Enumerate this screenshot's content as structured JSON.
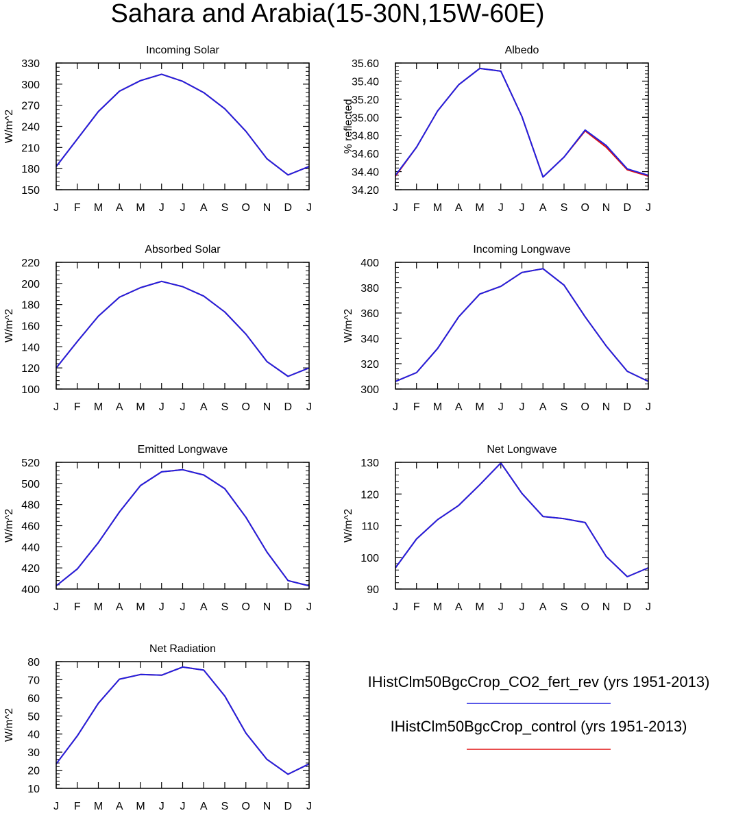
{
  "figure": {
    "title": "Sahara and Arabia(15-30N,15W-60E)"
  },
  "legend": {
    "entries": [
      {
        "label": "IHistClm50BgcCrop_CO2_fert_rev (yrs 1951-2013)",
        "color": "#2020e0"
      },
      {
        "label": "IHistClm50BgcCrop_control (yrs 1951-2013)",
        "color": "#e01010"
      }
    ]
  },
  "chart_data": [
    {
      "type": "line",
      "title": "Incoming Solar",
      "ylabel": "W/m^2",
      "categories": [
        "J",
        "F",
        "M",
        "A",
        "M",
        "J",
        "J",
        "A",
        "S",
        "O",
        "N",
        "D",
        "J"
      ],
      "ylim": [
        150,
        330
      ],
      "yticks": [
        "150",
        "180",
        "210",
        "240",
        "270",
        "300",
        "330"
      ],
      "series": [
        {
          "color": "#e01010",
          "values": [
            183,
            222,
            261,
            290,
            305,
            314,
            304,
            288,
            265,
            233,
            194,
            171,
            183
          ]
        },
        {
          "color": "#2020e0",
          "values": [
            183,
            222,
            261,
            290,
            305,
            314,
            304,
            288,
            265,
            233,
            194,
            171,
            183
          ]
        }
      ]
    },
    {
      "type": "line",
      "title": "Albedo",
      "ylabel": "% reflected",
      "categories": [
        "J",
        "F",
        "M",
        "A",
        "M",
        "J",
        "J",
        "A",
        "S",
        "O",
        "N",
        "D",
        "J"
      ],
      "ylim": [
        34.2,
        35.6
      ],
      "yticks": [
        "34.20",
        "34.40",
        "34.60",
        "34.80",
        "35.00",
        "35.20",
        "35.40",
        "35.60"
      ],
      "series": [
        {
          "color": "#e01010",
          "values": [
            34.35,
            34.67,
            35.07,
            35.36,
            35.54,
            35.51,
            35.01,
            34.34,
            34.56,
            34.85,
            34.67,
            34.42,
            34.35
          ]
        },
        {
          "color": "#2020e0",
          "values": [
            34.36,
            34.67,
            35.07,
            35.36,
            35.54,
            35.51,
            35.01,
            34.34,
            34.56,
            34.86,
            34.69,
            34.43,
            34.36
          ]
        }
      ]
    },
    {
      "type": "line",
      "title": "Absorbed Solar",
      "ylabel": "W/m^2",
      "categories": [
        "J",
        "F",
        "M",
        "A",
        "M",
        "J",
        "J",
        "A",
        "S",
        "O",
        "N",
        "D",
        "J"
      ],
      "ylim": [
        100,
        220
      ],
      "yticks": [
        "100",
        "120",
        "140",
        "160",
        "180",
        "200",
        "220"
      ],
      "series": [
        {
          "color": "#e01010",
          "values": [
            120,
            145,
            169,
            187,
            196,
            202,
            197,
            188,
            173,
            152,
            126,
            112,
            120
          ]
        },
        {
          "color": "#2020e0",
          "values": [
            120,
            145,
            169,
            187,
            196,
            202,
            197,
            188,
            173,
            152,
            126,
            112,
            120
          ]
        }
      ]
    },
    {
      "type": "line",
      "title": "Incoming Longwave",
      "ylabel": "W/m^2",
      "categories": [
        "J",
        "F",
        "M",
        "A",
        "M",
        "J",
        "J",
        "A",
        "S",
        "O",
        "N",
        "D",
        "J"
      ],
      "ylim": [
        300,
        400
      ],
      "yticks": [
        "300",
        "320",
        "340",
        "360",
        "380",
        "400"
      ],
      "series": [
        {
          "color": "#e01010",
          "values": [
            306,
            313,
            332,
            357,
            375,
            381,
            392,
            395,
            382,
            357,
            334,
            314,
            306
          ]
        },
        {
          "color": "#2020e0",
          "values": [
            306,
            313,
            332,
            357,
            375,
            381,
            392,
            395,
            382,
            357,
            334,
            314,
            306
          ]
        }
      ]
    },
    {
      "type": "line",
      "title": "Emitted Longwave",
      "ylabel": "W/m^2",
      "categories": [
        "J",
        "F",
        "M",
        "A",
        "M",
        "J",
        "J",
        "A",
        "S",
        "O",
        "N",
        "D",
        "J"
      ],
      "ylim": [
        400,
        520
      ],
      "yticks": [
        "400",
        "420",
        "440",
        "460",
        "480",
        "500",
        "520"
      ],
      "series": [
        {
          "color": "#e01010",
          "values": [
            403,
            419,
            444,
            473,
            498,
            511,
            513,
            508,
            495,
            468,
            435,
            408,
            403
          ]
        },
        {
          "color": "#2020e0",
          "values": [
            403,
            419,
            444,
            473,
            498,
            511,
            513,
            508,
            495,
            468,
            435,
            408,
            403
          ]
        }
      ]
    },
    {
      "type": "line",
      "title": "Net Longwave",
      "ylabel": "W/m^2",
      "categories": [
        "J",
        "F",
        "M",
        "A",
        "M",
        "J",
        "J",
        "A",
        "S",
        "O",
        "N",
        "D",
        "J"
      ],
      "ylim": [
        90,
        130
      ],
      "yticks": [
        "90",
        "100",
        "110",
        "120",
        "130"
      ],
      "series": [
        {
          "color": "#e01010",
          "values": [
            96.7,
            105.8,
            111.9,
            116.4,
            122.9,
            129.8,
            120.2,
            112.9,
            112.2,
            111,
            100.3,
            93.9,
            96.7
          ]
        },
        {
          "color": "#2020e0",
          "values": [
            96.7,
            105.8,
            111.9,
            116.4,
            122.9,
            129.8,
            120.2,
            112.9,
            112.2,
            111,
            100.3,
            93.9,
            96.7
          ]
        }
      ]
    },
    {
      "type": "line",
      "title": "Net Radiation",
      "ylabel": "W/m^2",
      "categories": [
        "J",
        "F",
        "M",
        "A",
        "M",
        "J",
        "J",
        "A",
        "S",
        "O",
        "N",
        "D",
        "J"
      ],
      "ylim": [
        10,
        80
      ],
      "yticks": [
        "10",
        "20",
        "30",
        "40",
        "50",
        "60",
        "70",
        "80"
      ],
      "series": [
        {
          "color": "#e01010",
          "values": [
            23.5,
            39,
            57,
            70.3,
            72.9,
            72.5,
            77,
            75.3,
            61,
            40.5,
            26,
            17.8,
            23.5
          ]
        },
        {
          "color": "#2020e0",
          "values": [
            23.5,
            39,
            57,
            70.3,
            72.9,
            72.5,
            77,
            75.3,
            61,
            40.5,
            26,
            17.8,
            23.5
          ]
        }
      ]
    }
  ]
}
